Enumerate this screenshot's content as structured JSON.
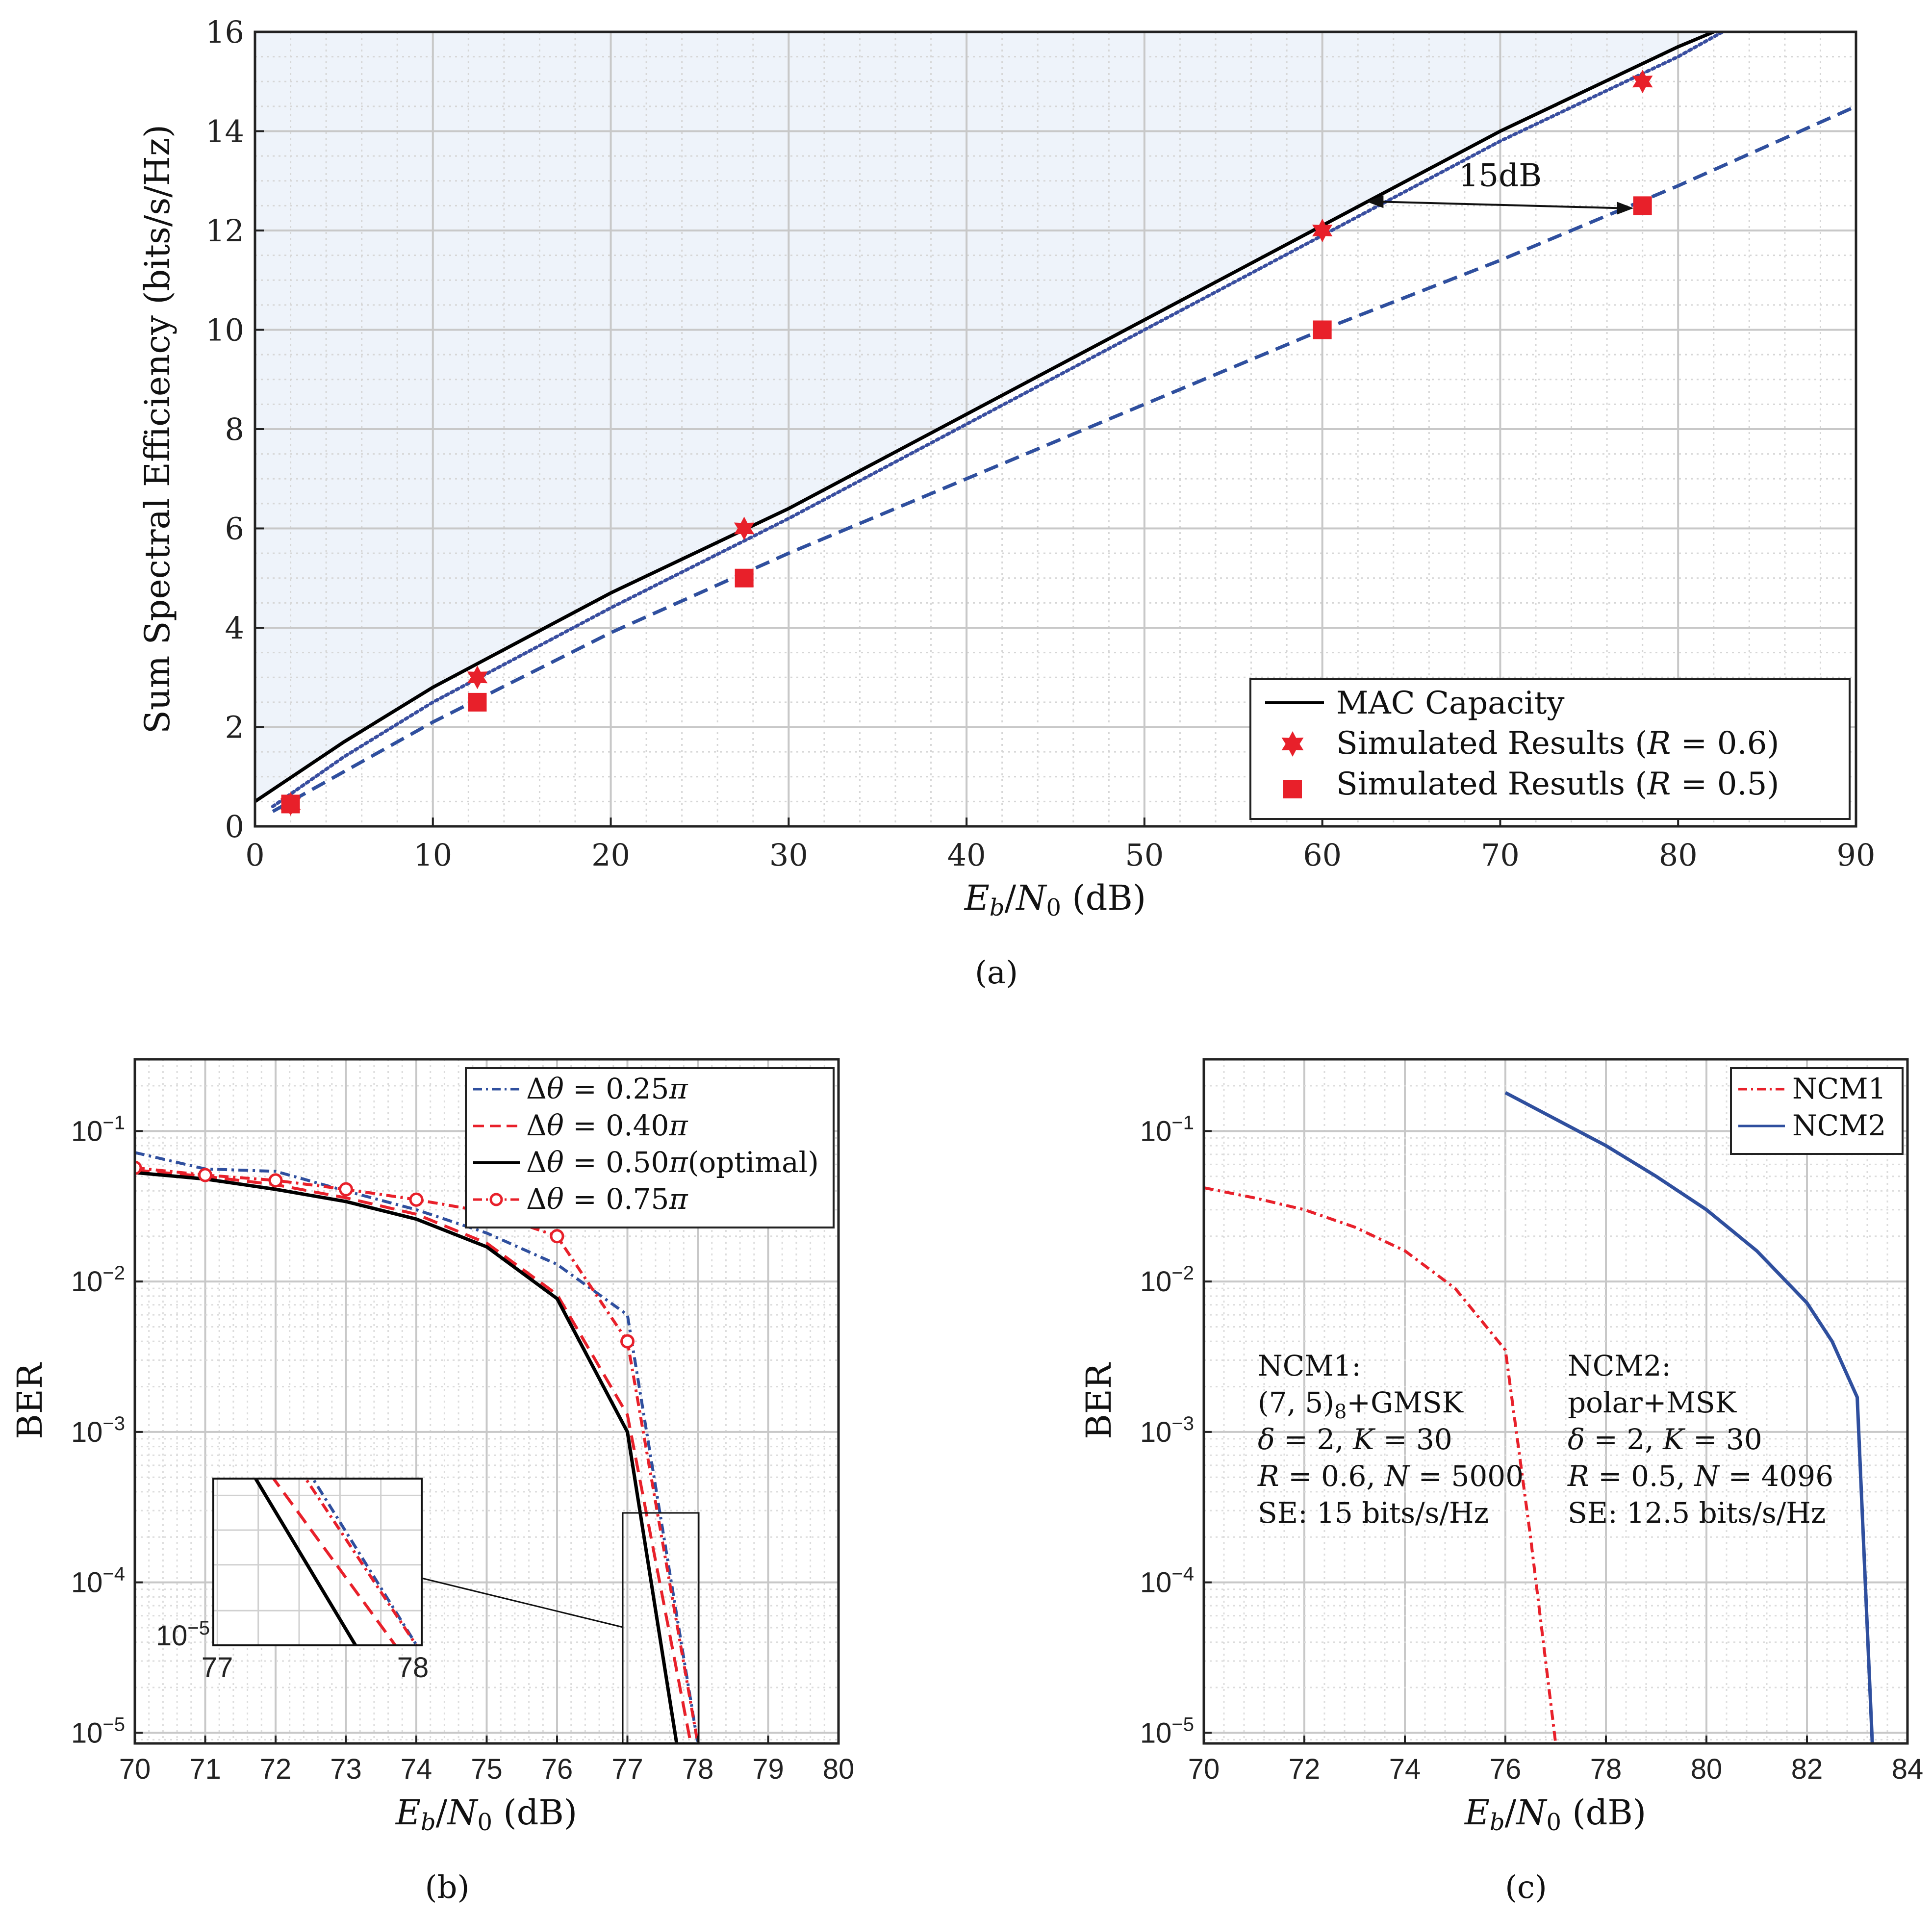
{
  "chart_data": [
    {
      "id": "a",
      "type": "line",
      "caption": "(a)",
      "xlabel": "E_b/N_0 (dB)",
      "ylabel": "Sum Spectral Efficiency (bits/s/Hz)",
      "xlim": [
        0,
        90
      ],
      "ylim": [
        0,
        16
      ],
      "xticks": [
        0,
        10,
        20,
        30,
        40,
        50,
        60,
        70,
        80,
        90
      ],
      "yticks": [
        0,
        2,
        4,
        6,
        8,
        10,
        12,
        14,
        16
      ],
      "grid": true,
      "legend_position": "bottom-right",
      "shaded_region": "above MAC Capacity",
      "series": [
        {
          "name": "MAC Capacity",
          "style": "solid",
          "color": "#000000",
          "x": [
            0,
            5,
            10,
            20,
            30,
            40,
            50,
            60,
            70,
            80,
            82
          ],
          "y": [
            0.5,
            1.7,
            2.8,
            4.7,
            6.4,
            8.3,
            10.2,
            12.1,
            14.0,
            15.7,
            16.0
          ]
        },
        {
          "name": "",
          "style": "dotted",
          "color": "#3a4fa0",
          "x": [
            1,
            5,
            10,
            20,
            30,
            40,
            50,
            60,
            70,
            80,
            82.5
          ],
          "y": [
            0.4,
            1.4,
            2.5,
            4.4,
            6.2,
            8.1,
            10.0,
            11.9,
            13.8,
            15.5,
            16.0
          ]
        },
        {
          "name": "",
          "style": "dashed",
          "color": "#2f4f9e",
          "x": [
            1,
            10,
            20,
            30,
            40,
            50,
            60,
            70,
            80,
            90
          ],
          "y": [
            0.3,
            2.1,
            3.9,
            5.5,
            7.0,
            8.5,
            10.0,
            11.4,
            12.9,
            14.5
          ]
        },
        {
          "name": "Simulated Results (R = 0.6)",
          "marker": "star",
          "color": "#e8202a",
          "x": [
            2,
            12.5,
            27.5,
            60,
            78
          ],
          "y": [
            0.45,
            3.0,
            6.0,
            12.0,
            15.0
          ]
        },
        {
          "name": "Simulated Resutls (R = 0.5)",
          "marker": "square",
          "color": "#e8202a",
          "x": [
            2,
            12.5,
            27.5,
            60,
            78
          ],
          "y": [
            0.45,
            2.5,
            5.0,
            10.0,
            12.5
          ]
        }
      ],
      "annotation": {
        "text": "15dB",
        "x_from": 62.5,
        "x_to": 77.5,
        "y": 12.5
      }
    },
    {
      "id": "b",
      "type": "line",
      "caption": "(b)",
      "xlabel": "E_b/N_0 (dB)",
      "ylabel": "BER",
      "xlim": [
        70,
        80
      ],
      "ylim": [
        8.5e-06,
        0.3
      ],
      "yscale": "log",
      "xticks": [
        70,
        71,
        72,
        73,
        74,
        75,
        76,
        77,
        78,
        79,
        80
      ],
      "ytick_labels": [
        "10^-5",
        "10^-4",
        "10^-3",
        "10^-2",
        "10^-1"
      ],
      "grid": true,
      "legend_position": "top-right",
      "series": [
        {
          "name": "Δθ = 0.25π",
          "style": "dashdot",
          "color": "#2f4f9e",
          "x": [
            70,
            71,
            72,
            73,
            74,
            75,
            76,
            77,
            78
          ],
          "y": [
            0.072,
            0.056,
            0.054,
            0.04,
            0.03,
            0.021,
            0.013,
            0.006,
            8.5e-06
          ]
        },
        {
          "name": "Δθ = 0.40π",
          "style": "dashed",
          "color": "#e8202a",
          "x": [
            70,
            71,
            72,
            73,
            74,
            75,
            76,
            77,
            77.9
          ],
          "y": [
            0.055,
            0.05,
            0.044,
            0.036,
            0.028,
            0.018,
            0.0082,
            0.0013,
            8.5e-06
          ]
        },
        {
          "name": "Δθ = 0.50π(optimal)",
          "style": "solid",
          "color": "#000000",
          "x": [
            70,
            71,
            72,
            73,
            74,
            75,
            76,
            77,
            77.7
          ],
          "y": [
            0.053,
            0.048,
            0.041,
            0.034,
            0.026,
            0.017,
            0.0077,
            0.001,
            8.5e-06
          ]
        },
        {
          "name": "Δθ = 0.75π",
          "style": "dashdot-circle",
          "color": "#e8202a",
          "x": [
            70,
            71,
            72,
            73,
            74,
            75,
            76,
            77,
            78
          ],
          "y": [
            0.057,
            0.051,
            0.047,
            0.041,
            0.035,
            0.029,
            0.02,
            0.004,
            8.5e-06
          ]
        }
      ],
      "inset": {
        "xticks": [
          "77",
          "78"
        ],
        "ytick": "10^-5"
      }
    },
    {
      "id": "c",
      "type": "line",
      "caption": "(c)",
      "xlabel": "E_b/N_0 (dB)",
      "ylabel": "BER",
      "xlim": [
        70,
        84
      ],
      "ylim": [
        8.5e-06,
        0.3
      ],
      "yscale": "log",
      "xticks": [
        70,
        72,
        74,
        76,
        78,
        80,
        82,
        84
      ],
      "ytick_labels": [
        "10^-5",
        "10^-4",
        "10^-3",
        "10^-2",
        "10^-1"
      ],
      "grid": true,
      "legend_position": "top-right",
      "series": [
        {
          "name": "NCM1",
          "style": "dashdot",
          "color": "#e8202a",
          "x": [
            70,
            71,
            72,
            73,
            74,
            75,
            76,
            76.5,
            77
          ],
          "y": [
            0.042,
            0.036,
            0.03,
            0.023,
            0.016,
            0.009,
            0.0035,
            0.0002,
            8.5e-06
          ]
        },
        {
          "name": "NCM2",
          "style": "solid",
          "color": "#2f4f9e",
          "x": [
            76,
            77,
            78,
            79,
            80,
            81,
            82,
            82.5,
            83,
            83.3
          ],
          "y": [
            0.18,
            0.12,
            0.08,
            0.05,
            0.03,
            0.016,
            0.0072,
            0.004,
            0.0017,
            8.5e-06
          ]
        }
      ],
      "annotations": [
        {
          "lines": [
            "NCM1:",
            "(7,5)₈+GMSK",
            "δ = 2, K = 30",
            "R = 0.6, N = 5000",
            "SE: 15 bits/s/Hz"
          ]
        },
        {
          "lines": [
            "NCM2:",
            "polar+MSK",
            "δ = 2, K = 30",
            "R = 0.5, N = 4096",
            "SE: 12.5 bits/s/Hz"
          ]
        }
      ]
    }
  ]
}
